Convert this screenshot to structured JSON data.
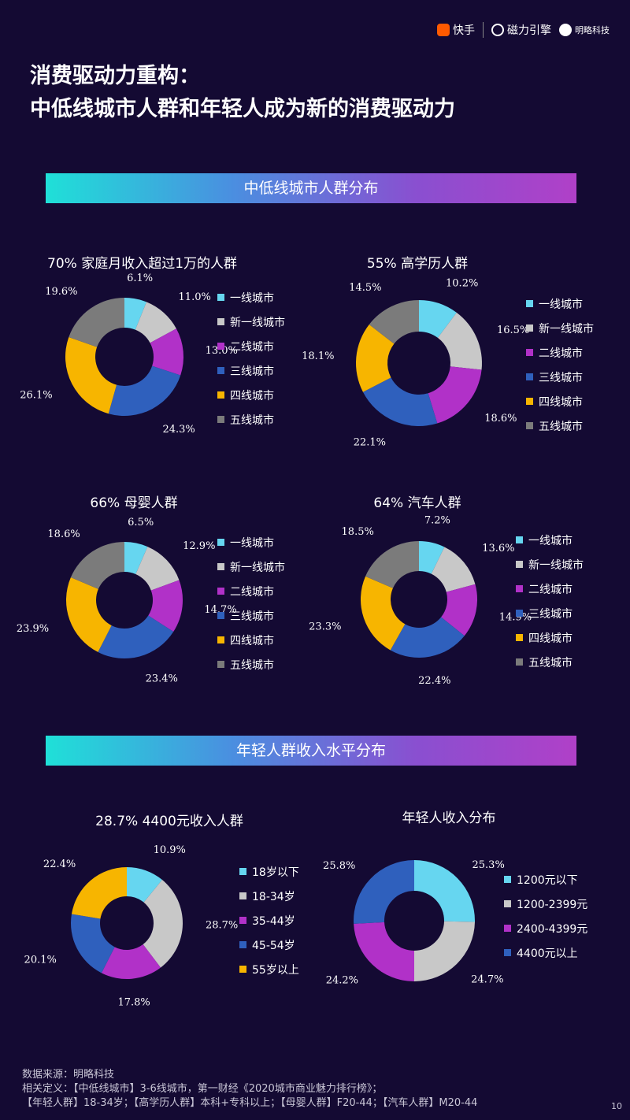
{
  "header": {
    "logos": [
      {
        "label": "快手",
        "icon": "kuaishou-logo-icon"
      },
      {
        "label": "磁力引擎",
        "icon": "cili-engine-logo-icon"
      },
      {
        "label": "明略科技",
        "icon": "mininglamp-logo-icon"
      }
    ]
  },
  "title": {
    "line1": "消费驱动力重构：",
    "line2": "中低线城市人群和年轻人成为新的消费驱动力"
  },
  "section1": {
    "label": "中低线城市人群分布"
  },
  "section2": {
    "label": "年轻人群收入水平分布"
  },
  "city_colors": [
    "#66d6f0",
    "#c8c8c8",
    "#b131c8",
    "#2f60bd",
    "#f7b500",
    "#7b7b7b"
  ],
  "income_colors": [
    "#66d6f0",
    "#c8c8c8",
    "#b131c8",
    "#2f60bd"
  ],
  "age_colors": [
    "#66d6f0",
    "#c8c8c8",
    "#b131c8",
    "#2f60bd",
    "#f7b500"
  ],
  "chart_data": [
    {
      "type": "pie",
      "title": "70% 家庭月收入超过1万的人群",
      "categories": [
        "一线城市",
        "新一线城市",
        "二线城市",
        "三线城市",
        "四线城市",
        "五线城市"
      ],
      "values": [
        6.1,
        11.0,
        13.0,
        24.3,
        26.1,
        19.6
      ],
      "labels": [
        "6.1%",
        "11.0%",
        "13.0%",
        "24.3%",
        "26.1%",
        "19.6%"
      ]
    },
    {
      "type": "pie",
      "title": "55% 高学历人群",
      "categories": [
        "一线城市",
        "新一线城市",
        "二线城市",
        "三线城市",
        "四线城市",
        "五线城市"
      ],
      "values": [
        10.2,
        16.5,
        18.6,
        22.1,
        18.1,
        14.5
      ],
      "labels": [
        "10.2%",
        "16.5%",
        "18.6%",
        "22.1%",
        "18.1%",
        "14.5%"
      ]
    },
    {
      "type": "pie",
      "title": "66% 母婴人群",
      "categories": [
        "一线城市",
        "新一线城市",
        "二线城市",
        "三线城市",
        "四线城市",
        "五线城市"
      ],
      "values": [
        6.5,
        12.9,
        14.7,
        23.4,
        23.9,
        18.6
      ],
      "labels": [
        "6.5%",
        "12.9%",
        "14.7%",
        "23.4%",
        "23.9%",
        "18.6%"
      ]
    },
    {
      "type": "pie",
      "title": "64% 汽车人群",
      "categories": [
        "一线城市",
        "新一线城市",
        "二线城市",
        "三线城市",
        "四线城市",
        "五线城市"
      ],
      "values": [
        7.2,
        13.6,
        14.9,
        22.4,
        23.3,
        18.5
      ],
      "labels": [
        "7.2%",
        "13.6%",
        "14.9%",
        "22.4%",
        "23.3%",
        "18.5%"
      ]
    },
    {
      "type": "pie",
      "title": "28.7% 4400元收入人群",
      "categories": [
        "18岁以下",
        "18-34岁",
        "35-44岁",
        "45-54岁",
        "55岁以上"
      ],
      "values": [
        10.9,
        28.7,
        17.8,
        20.1,
        22.4
      ],
      "labels": [
        "10.9%",
        "28.7%",
        "17.8%",
        "20.1%",
        "22.4%"
      ]
    },
    {
      "type": "pie",
      "title": "年轻人收入分布",
      "categories": [
        "1200元以下",
        "1200-2399元",
        "2400-4399元",
        "4400元以上"
      ],
      "values": [
        25.3,
        24.7,
        24.2,
        25.8
      ],
      "labels": [
        "25.3%",
        "24.7%",
        "24.2%",
        "25.8%"
      ]
    }
  ],
  "footer": {
    "source": "数据来源：明略科技",
    "def1": "相关定义：【中低线城市】3-6线城市，第一财经《2020城市商业魅力排行榜》；",
    "def2": "【年轻人群】18-34岁；【高学历人群】本科+专科以上；【母婴人群】F20-44；【汽车人群】M20-44",
    "page": "10"
  }
}
